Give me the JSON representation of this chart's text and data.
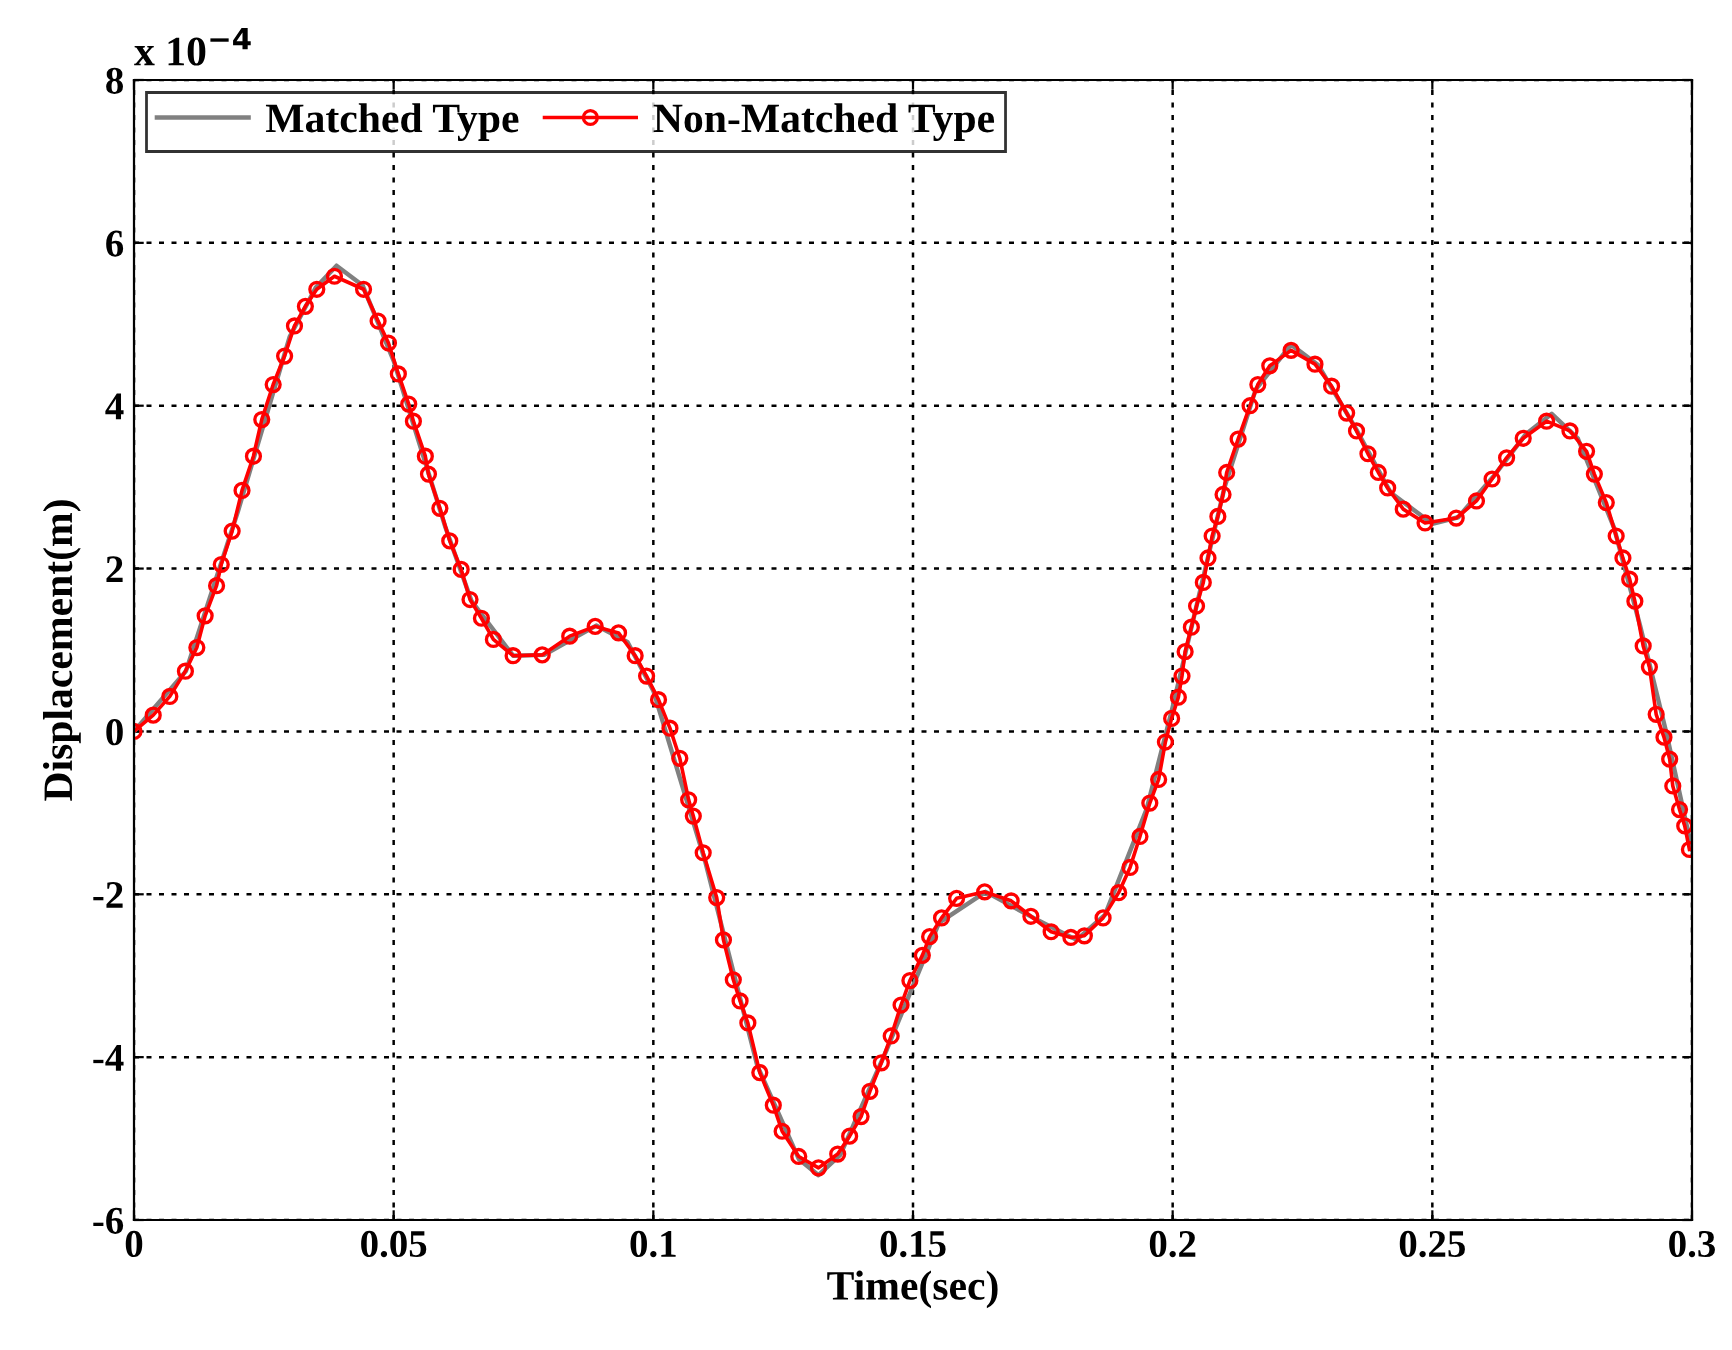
{
  "chart_data": {
    "type": "line",
    "xlabel": "Time(sec)",
    "ylabel": "Displacement(m)",
    "annotations": [
      "x 10$^{−4}$"
    ],
    "xlim": [
      0,
      0.3
    ],
    "xticks": [
      0,
      0.05,
      0.1,
      0.15,
      0.2,
      0.25,
      0.3
    ],
    "ylim": [
      -6,
      8
    ],
    "yticks": [
      -6,
      -4,
      -2,
      0,
      2,
      4,
      6,
      8
    ],
    "grid": true,
    "legend": "top left",
    "series": [
      {
        "name": "Matched Type",
        "color": "#808080",
        "marker": "none",
        "x": [
          0,
          0.01,
          0.02,
          0.03,
          0.035,
          0.039,
          0.044,
          0.05,
          0.06,
          0.065,
          0.073,
          0.079,
          0.089,
          0.095,
          0.1,
          0.11,
          0.12,
          0.128,
          0.1318,
          0.136,
          0.145,
          0.155,
          0.164,
          0.172,
          0.1815,
          0.187,
          0.195,
          0.2,
          0.205,
          0.21,
          0.216,
          0.2228,
          0.228,
          0.235,
          0.242,
          0.25,
          0.255,
          0.262,
          0.268,
          0.273,
          0.278,
          0.285,
          0.29,
          0.295,
          0.3
        ],
        "values": [
          0,
          0.74,
          2.7,
          4.85,
          5.45,
          5.72,
          5.48,
          4.55,
          2.5,
          1.6,
          0.93,
          0.94,
          1.3,
          1.1,
          0.5,
          -1.6,
          -4.1,
          -5.25,
          -5.45,
          -5.2,
          -3.9,
          -2.35,
          -1.97,
          -2.25,
          -2.56,
          -2.25,
          -0.95,
          0.3,
          1.65,
          3.0,
          4.2,
          4.75,
          4.5,
          3.75,
          2.93,
          2.55,
          2.63,
          3.15,
          3.65,
          3.9,
          3.6,
          2.5,
          1.3,
          0.0,
          -1.45
        ]
      },
      {
        "name": "Non-Matched Type",
        "color": "#ff0000",
        "marker": "circle",
        "x": [
          0,
          0.0037,
          0.0069,
          0.0099,
          0.0121,
          0.0137,
          0.0159,
          0.0168,
          0.0189,
          0.0208,
          0.023,
          0.0246,
          0.0268,
          0.029,
          0.0309,
          0.033,
          0.0352,
          0.0386,
          0.0442,
          0.047,
          0.049,
          0.0509,
          0.0529,
          0.0538,
          0.0561,
          0.0567,
          0.0589,
          0.0608,
          0.063,
          0.0647,
          0.0669,
          0.0692,
          0.073,
          0.0786,
          0.0839,
          0.0888,
          0.0933,
          0.0965,
          0.0987,
          0.101,
          0.1032,
          0.1051,
          0.1068,
          0.1077,
          0.1096,
          0.1122,
          0.1135,
          0.1154,
          0.1167,
          0.1182,
          0.1205,
          0.1231,
          0.1248,
          0.128,
          0.1318,
          0.1355,
          0.1378,
          0.14,
          0.1417,
          0.1439,
          0.1458,
          0.1477,
          0.1494,
          0.1518,
          0.1532,
          0.1555,
          0.1584,
          0.1638,
          0.1689,
          0.1727,
          0.1766,
          0.1804,
          0.183,
          0.1866,
          0.1896,
          0.1918,
          0.1937,
          0.1956,
          0.1973,
          0.1986,
          0.1998,
          0.2011,
          0.2018,
          0.2024,
          0.2036,
          0.2046,
          0.2059,
          0.2068,
          0.2076,
          0.2087,
          0.2097,
          0.2104,
          0.2126,
          0.2149,
          0.2164,
          0.2187,
          0.2228,
          0.2274,
          0.2306,
          0.2335,
          0.2354,
          0.2376,
          0.2396,
          0.2414,
          0.2444,
          0.2486,
          0.2546,
          0.2585,
          0.2615,
          0.2643,
          0.2675,
          0.272,
          0.2765,
          0.2797,
          0.2812,
          0.2835,
          0.2854,
          0.2867,
          0.288,
          0.289,
          0.2906,
          0.2918,
          0.2931,
          0.2946,
          0.2957,
          0.2963,
          0.2976,
          0.2986,
          0.2995
        ],
        "values": [
          0,
          0.2,
          0.43,
          0.74,
          1.03,
          1.42,
          1.79,
          2.05,
          2.46,
          2.96,
          3.38,
          3.83,
          4.26,
          4.61,
          4.98,
          5.22,
          5.43,
          5.59,
          5.43,
          5.04,
          4.77,
          4.39,
          4.02,
          3.81,
          3.38,
          3.16,
          2.74,
          2.34,
          1.99,
          1.62,
          1.39,
          1.13,
          0.93,
          0.94,
          1.17,
          1.29,
          1.21,
          0.93,
          0.68,
          0.39,
          0.04,
          -0.33,
          -0.84,
          -1.04,
          -1.49,
          -2.04,
          -2.56,
          -3.05,
          -3.31,
          -3.58,
          -4.19,
          -4.59,
          -4.91,
          -5.22,
          -5.36,
          -5.19,
          -4.97,
          -4.73,
          -4.42,
          -4.07,
          -3.74,
          -3.36,
          -3.06,
          -2.75,
          -2.52,
          -2.29,
          -2.05,
          -1.97,
          -2.08,
          -2.27,
          -2.46,
          -2.53,
          -2.51,
          -2.29,
          -1.98,
          -1.67,
          -1.29,
          -0.88,
          -0.59,
          -0.13,
          0.16,
          0.42,
          0.68,
          0.98,
          1.28,
          1.54,
          1.83,
          2.13,
          2.4,
          2.64,
          2.91,
          3.18,
          3.59,
          4.0,
          4.26,
          4.49,
          4.68,
          4.51,
          4.24,
          3.91,
          3.69,
          3.41,
          3.18,
          2.99,
          2.73,
          2.56,
          2.62,
          2.83,
          3.1,
          3.36,
          3.6,
          3.81,
          3.69,
          3.44,
          3.16,
          2.81,
          2.4,
          2.13,
          1.87,
          1.6,
          1.05,
          0.79,
          0.21,
          -0.07,
          -0.34,
          -0.67,
          -0.96,
          -1.16,
          -1.45
        ]
      }
    ]
  }
}
